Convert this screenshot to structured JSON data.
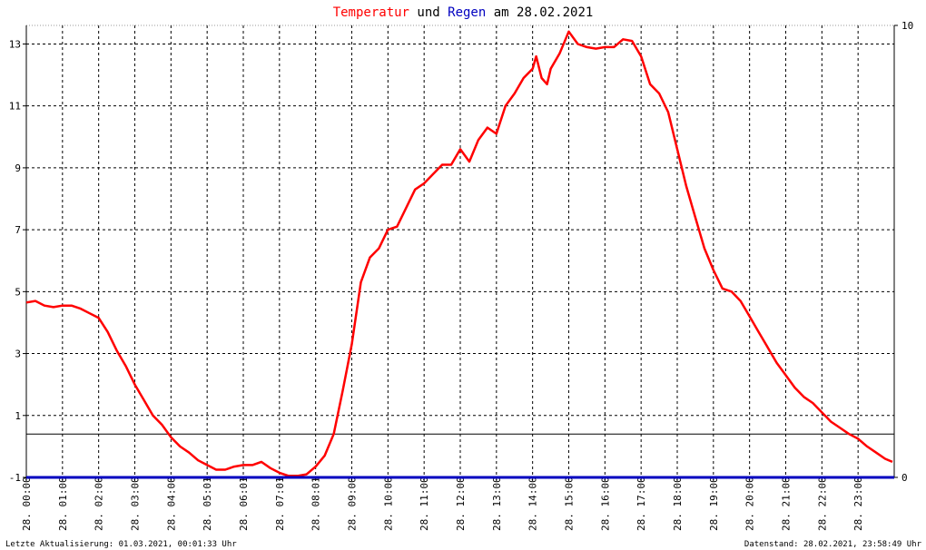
{
  "colors": {
    "temperature": "#ff0000",
    "rain": "#0000c0",
    "axis": "#000000",
    "grid": "#000000",
    "background": "#ffffff"
  },
  "title": {
    "part1": "Temperatur",
    "part2": " und ",
    "part3": "Regen",
    "part4": " am 28.02.2021"
  },
  "footer": {
    "left": "Letzte Aktualisierung: 01.03.2021, 00:01:33 Uhr",
    "right": "Datenstand: 28.02.2021, 23:58:49 Uhr"
  },
  "chart_data": {
    "type": "line",
    "title": "Temperatur und Regen am 28.02.2021",
    "x_range": [
      0,
      24
    ],
    "x_unit": "hours",
    "x_ticks": [
      {
        "date": "28.",
        "time": "00:00"
      },
      {
        "date": "28.",
        "time": "01:00"
      },
      {
        "date": "28.",
        "time": "02:00"
      },
      {
        "date": "28.",
        "time": "03:00"
      },
      {
        "date": "28.",
        "time": "04:00"
      },
      {
        "date": "28.",
        "time": "05:01"
      },
      {
        "date": "28.",
        "time": "06:01"
      },
      {
        "date": "28.",
        "time": "07:01"
      },
      {
        "date": "28.",
        "time": "08:01"
      },
      {
        "date": "28.",
        "time": "09:00"
      },
      {
        "date": "28.",
        "time": "10:00"
      },
      {
        "date": "28.",
        "time": "11:00"
      },
      {
        "date": "28.",
        "time": "12:00"
      },
      {
        "date": "28.",
        "time": "13:00"
      },
      {
        "date": "28.",
        "time": "14:00"
      },
      {
        "date": "28.",
        "time": "15:00"
      },
      {
        "date": "28.",
        "time": "16:00"
      },
      {
        "date": "28.",
        "time": "17:00"
      },
      {
        "date": "28.",
        "time": "18:00"
      },
      {
        "date": "28.",
        "time": "19:00"
      },
      {
        "date": "28.",
        "time": "20:00"
      },
      {
        "date": "28.",
        "time": "21:00"
      },
      {
        "date": "28.",
        "time": "22:00"
      },
      {
        "date": "28.",
        "time": "23:00"
      }
    ],
    "y_left": {
      "range": [
        -1,
        13.6
      ],
      "ticks": [
        "13",
        "11",
        "9",
        "7",
        "5",
        "3",
        "1",
        "-1"
      ]
    },
    "y_right": {
      "range": [
        0,
        10
      ],
      "ticks": [
        "10",
        "0"
      ]
    },
    "hline_temperature": 0.4,
    "grid": true,
    "series": [
      {
        "name": "Temperatur",
        "color": "#ff0000",
        "axis": "left",
        "x": [
          0,
          0.25,
          0.5,
          0.75,
          1.0,
          1.25,
          1.5,
          1.75,
          2.0,
          2.25,
          2.5,
          2.75,
          3.0,
          3.25,
          3.5,
          3.75,
          4.0,
          4.25,
          4.5,
          4.75,
          5.0,
          5.25,
          5.5,
          5.75,
          6.0,
          6.25,
          6.5,
          6.75,
          7.0,
          7.25,
          7.5,
          7.75,
          8.0,
          8.25,
          8.5,
          8.75,
          9.0,
          9.25,
          9.5,
          9.75,
          10.0,
          10.25,
          10.5,
          10.75,
          11.0,
          11.25,
          11.5,
          11.75,
          12.0,
          12.25,
          12.5,
          12.75,
          13.0,
          13.25,
          13.5,
          13.75,
          14.0,
          14.1,
          14.25,
          14.4,
          14.5,
          14.75,
          15.0,
          15.25,
          15.5,
          15.75,
          16.0,
          16.25,
          16.5,
          16.75,
          17.0,
          17.25,
          17.5,
          17.75,
          18.0,
          18.25,
          18.5,
          18.75,
          19.0,
          19.25,
          19.5,
          19.75,
          20.0,
          20.25,
          20.5,
          20.75,
          21.0,
          21.25,
          21.5,
          21.75,
          22.0,
          22.25,
          22.5,
          22.75,
          23.0,
          23.25,
          23.5,
          23.75,
          23.95
        ],
        "values": [
          4.65,
          4.7,
          4.55,
          4.5,
          4.55,
          4.55,
          4.45,
          4.3,
          4.15,
          3.7,
          3.1,
          2.6,
          2.0,
          1.5,
          1.0,
          0.7,
          0.3,
          0.0,
          -0.2,
          -0.45,
          -0.6,
          -0.75,
          -0.75,
          -0.65,
          -0.6,
          -0.6,
          -0.5,
          -0.7,
          -0.85,
          -0.95,
          -0.95,
          -0.9,
          -0.65,
          -0.3,
          0.4,
          1.8,
          3.3,
          5.3,
          6.1,
          6.4,
          7.0,
          7.1,
          7.7,
          8.3,
          8.5,
          8.8,
          9.1,
          9.1,
          9.6,
          9.2,
          9.9,
          10.3,
          10.1,
          11.0,
          11.4,
          11.9,
          12.2,
          12.6,
          11.9,
          11.7,
          12.2,
          12.7,
          13.4,
          13.0,
          12.9,
          12.85,
          12.9,
          12.9,
          13.15,
          13.1,
          12.6,
          11.7,
          11.4,
          10.8,
          9.6,
          8.4,
          7.4,
          6.4,
          5.7,
          5.1,
          5.0,
          4.7,
          4.2,
          3.7,
          3.2,
          2.7,
          2.3,
          1.9,
          1.6,
          1.4,
          1.1,
          0.8,
          0.6,
          0.4,
          0.25,
          0.0,
          -0.2,
          -0.4,
          -0.5
        ]
      },
      {
        "name": "Regen",
        "color": "#0000c0",
        "axis": "right",
        "x": [
          0,
          24
        ],
        "values": [
          0,
          0
        ]
      }
    ]
  }
}
